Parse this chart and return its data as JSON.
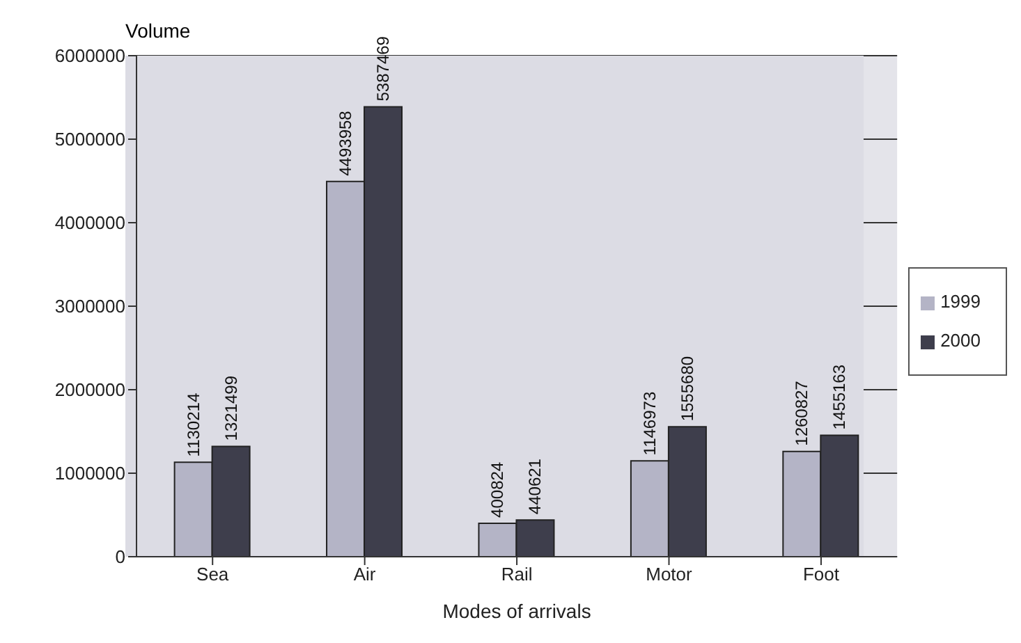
{
  "chart_data": {
    "type": "bar",
    "xlabel": "Modes of arrivals",
    "ylabel": "Volume",
    "categories": [
      "Sea",
      "Air",
      "Rail",
      "Motor",
      "Foot"
    ],
    "series": [
      {
        "name": "1999",
        "color": "#b4b4c6",
        "values": [
          1130214,
          4493958,
          400824,
          1146973,
          1260827
        ]
      },
      {
        "name": "2000",
        "color": "#3e3e4c",
        "values": [
          1321499,
          5387469,
          440621,
          1555680,
          1455163
        ]
      }
    ],
    "ylim": [
      0,
      6000000
    ],
    "yticks": [
      0,
      1000000,
      2000000,
      3000000,
      4000000,
      5000000,
      6000000
    ],
    "grid": "y",
    "legend": "right",
    "data_labels": true
  }
}
